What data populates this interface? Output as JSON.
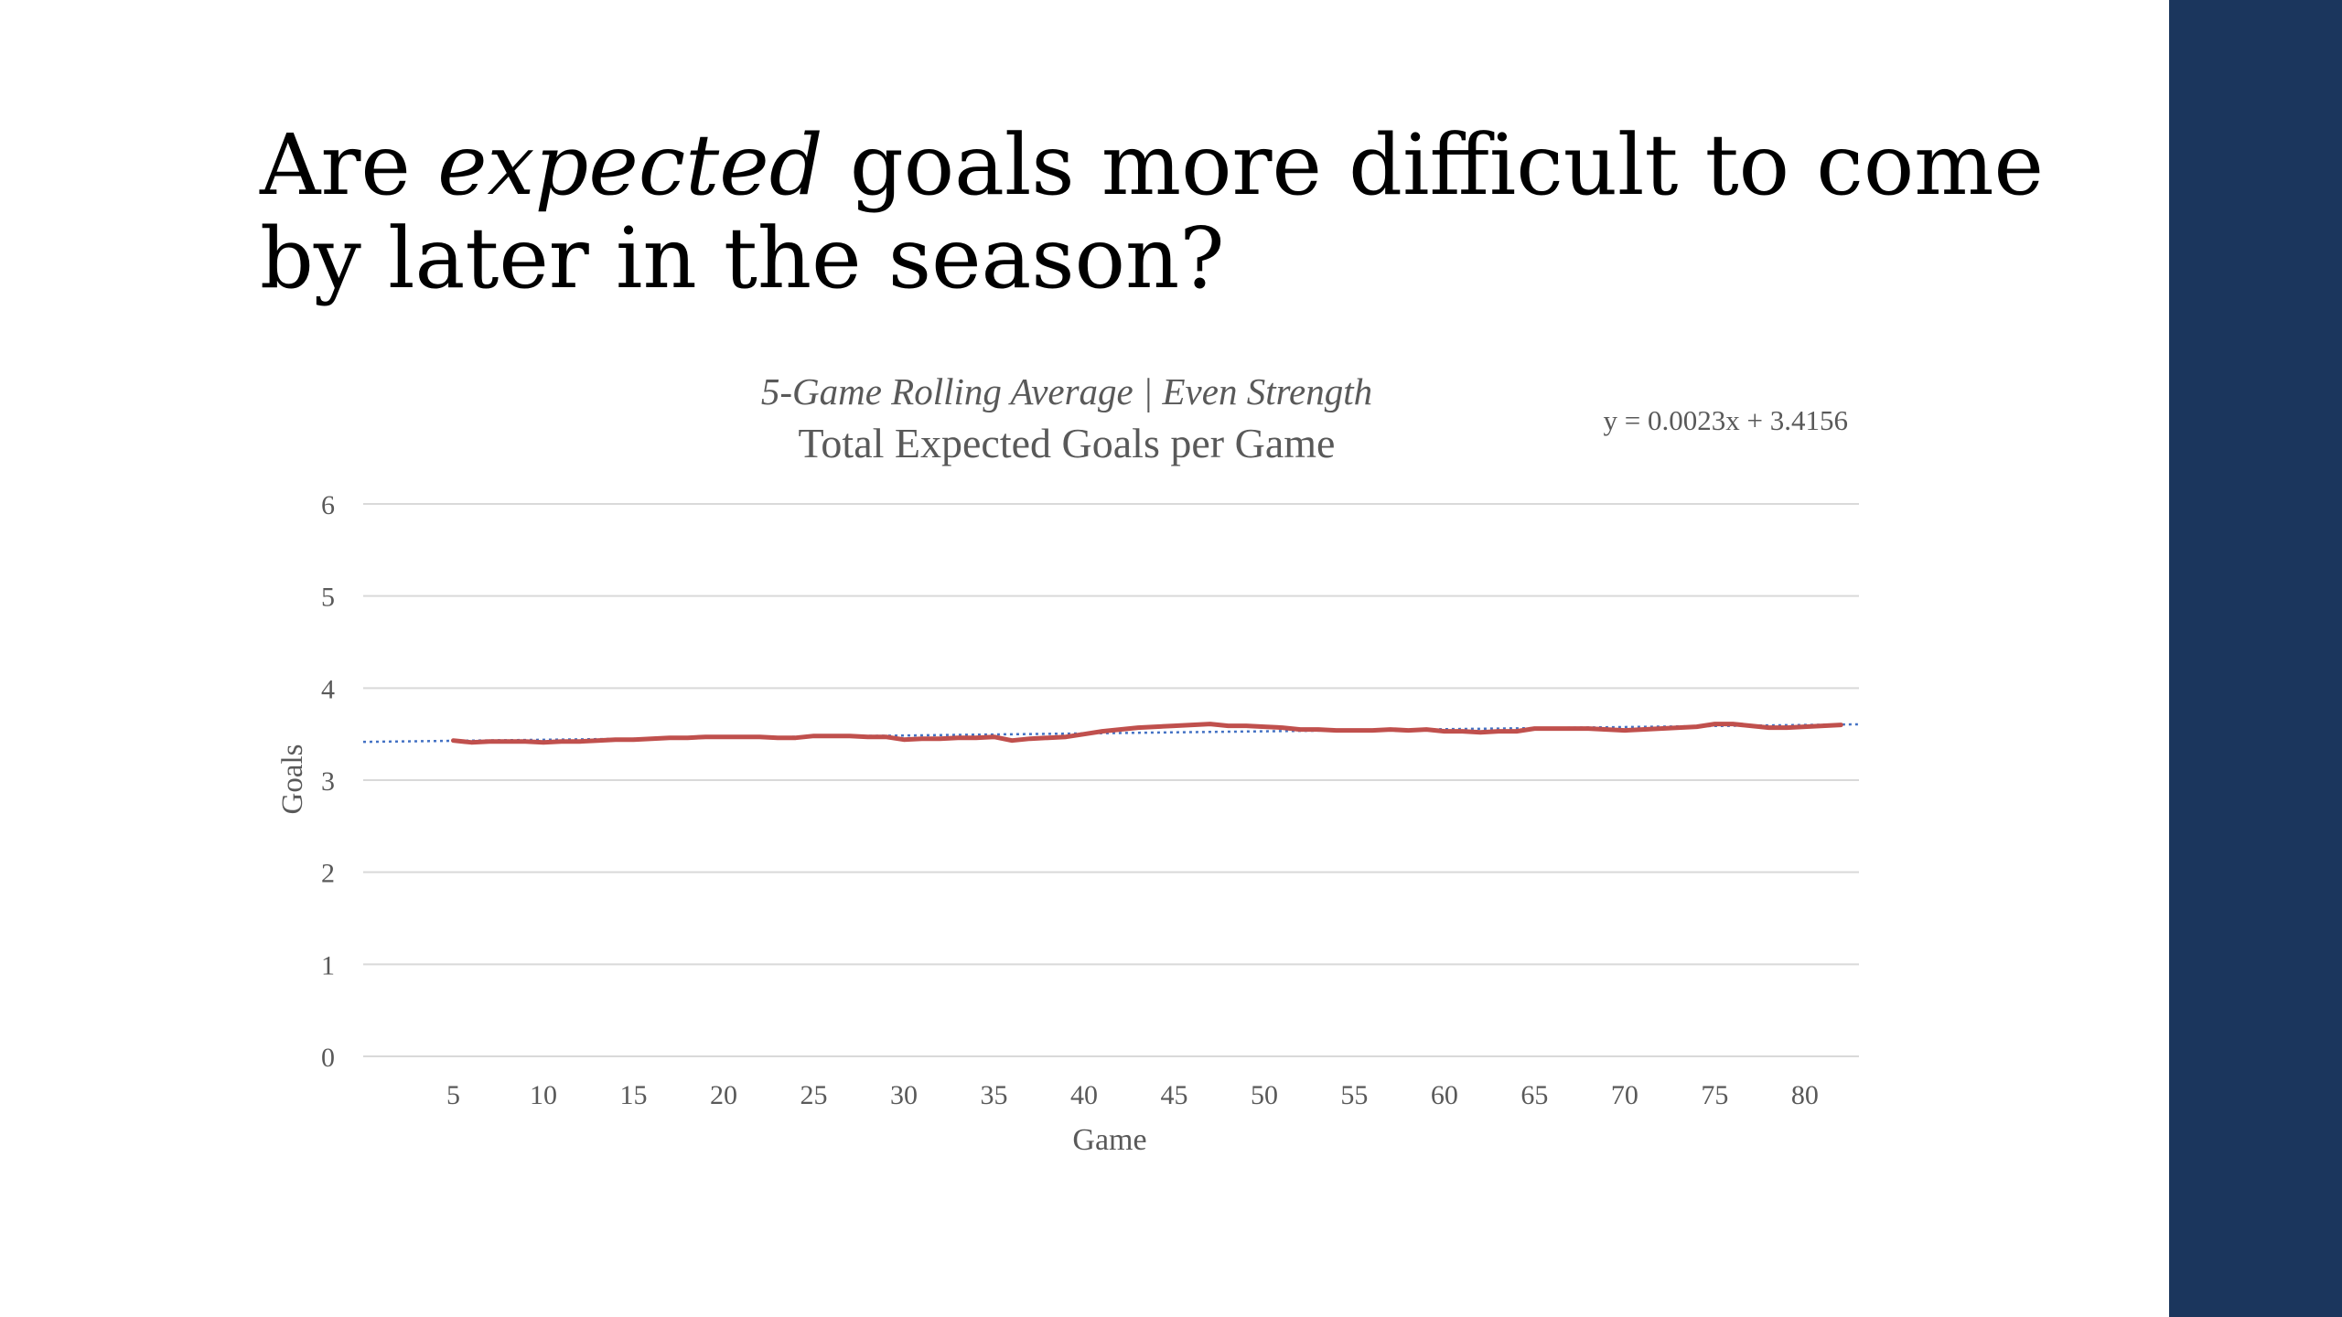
{
  "slide": {
    "title_before": "Are ",
    "title_emphasis": "expected",
    "title_after": " goals more difficult to come by later in the season?",
    "sidebar_color": "#1b365d"
  },
  "chart_data": {
    "type": "line",
    "subtitle": "5-Game Rolling Average | Even Strength",
    "title": "Total Expected Goals per Game",
    "xlabel": "Game",
    "ylabel": "Goals",
    "trendline_label": "y = 0.0023x + 3.4156",
    "trendline": {
      "slope": 0.0023,
      "intercept": 3.4156,
      "style": "dotted",
      "color": "#4472c4"
    },
    "xlim": [
      0,
      83
    ],
    "ylim": [
      0,
      6
    ],
    "xticks": [
      5,
      10,
      15,
      20,
      25,
      30,
      35,
      40,
      45,
      50,
      55,
      60,
      65,
      70,
      75,
      80
    ],
    "yticks": [
      0,
      1,
      2,
      3,
      4,
      5,
      6
    ],
    "grid": true,
    "legend": "none",
    "series": [
      {
        "color": "#c0504d",
        "x": [
          5,
          6,
          7,
          8,
          9,
          10,
          11,
          12,
          13,
          14,
          15,
          16,
          17,
          18,
          19,
          20,
          21,
          22,
          23,
          24,
          25,
          26,
          27,
          28,
          29,
          30,
          31,
          32,
          33,
          34,
          35,
          36,
          37,
          38,
          39,
          40,
          41,
          42,
          43,
          44,
          45,
          46,
          47,
          48,
          49,
          50,
          51,
          52,
          53,
          54,
          55,
          56,
          57,
          58,
          59,
          60,
          61,
          62,
          63,
          64,
          65,
          66,
          67,
          68,
          69,
          70,
          71,
          72,
          73,
          74,
          75,
          76,
          77,
          78,
          79,
          80,
          81,
          82
        ],
        "values": [
          3.43,
          3.41,
          3.42,
          3.42,
          3.42,
          3.41,
          3.42,
          3.42,
          3.43,
          3.44,
          3.44,
          3.45,
          3.46,
          3.46,
          3.47,
          3.47,
          3.47,
          3.47,
          3.46,
          3.46,
          3.48,
          3.48,
          3.48,
          3.47,
          3.47,
          3.44,
          3.45,
          3.45,
          3.46,
          3.46,
          3.47,
          3.43,
          3.45,
          3.46,
          3.47,
          3.5,
          3.53,
          3.55,
          3.57,
          3.58,
          3.59,
          3.6,
          3.61,
          3.59,
          3.59,
          3.58,
          3.57,
          3.55,
          3.55,
          3.54,
          3.54,
          3.54,
          3.55,
          3.54,
          3.55,
          3.53,
          3.53,
          3.52,
          3.53,
          3.53,
          3.56,
          3.56,
          3.56,
          3.56,
          3.55,
          3.54,
          3.55,
          3.56,
          3.57,
          3.58,
          3.61,
          3.61,
          3.59,
          3.57,
          3.57,
          3.58,
          3.59,
          3.6
        ]
      }
    ]
  }
}
